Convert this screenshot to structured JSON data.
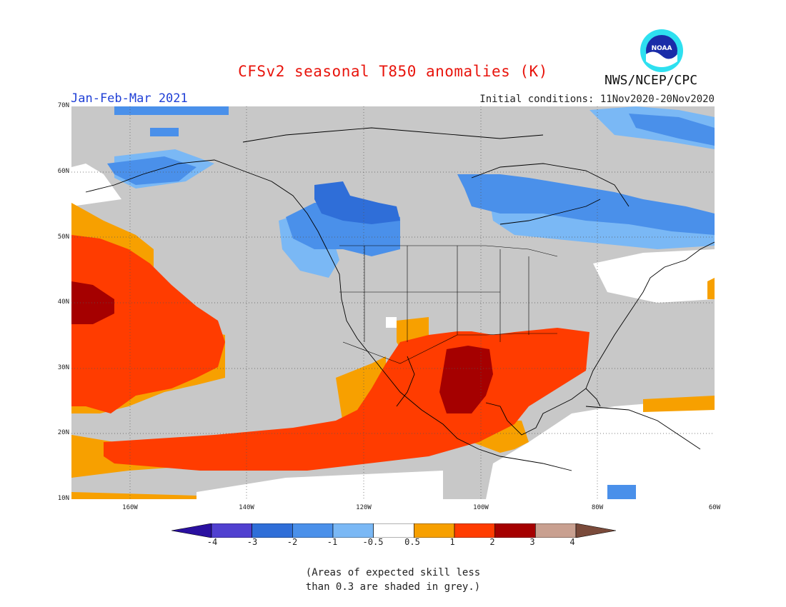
{
  "title": "CFSv2 seasonal T850 anomalies (K)",
  "period": "Jan-Feb-Mar 2021",
  "initial_conditions": "Initial conditions: 11Nov2020-20Nov2020",
  "agency": "NWS/NCEP/CPC",
  "logo_text": "NOAA",
  "lat_labels": [
    "70N",
    "60N",
    "50N",
    "40N",
    "30N",
    "20N",
    "10N"
  ],
  "lon_labels": [
    "160W",
    "140W",
    "120W",
    "100W",
    "80W",
    "60W"
  ],
  "colorbar_labels": [
    "-4",
    "-3",
    "-2",
    "-1",
    "-0.5",
    "0.5",
    "1",
    "2",
    "3",
    "4"
  ],
  "colorbar_colors": [
    "#2a10a0",
    "#5040d0",
    "#2f6ed8",
    "#4a90ea",
    "#7ab8f5",
    "#ffffff",
    "#f7a000",
    "#ff3c00",
    "#a50000",
    "#c9a090",
    "#7a4a3a"
  ],
  "colors": {
    "land_skill_grey": "#c8c8c8",
    "ocean_low_skill": "#c8c8c8",
    "title": "#e8140c",
    "period": "#1f3fd6"
  },
  "footnote_line1": "(Areas of expected skill less",
  "footnote_line2": "than 0.3 are shaded in grey.)"
}
